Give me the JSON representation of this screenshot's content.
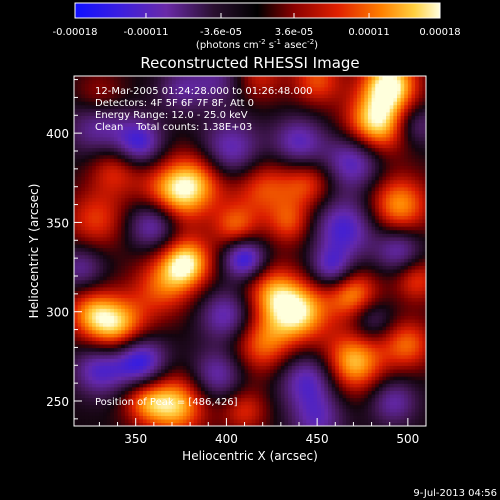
{
  "colorbar": {
    "tick_labels": [
      "-0.00018",
      "-0.00011",
      "-3.6e-05",
      "3.6e-05",
      "0.00011",
      "0.00018"
    ],
    "tick_values": [
      -0.00018,
      -0.00011,
      -3.6e-05,
      3.6e-05,
      0.00011,
      0.00018
    ],
    "units_prefix": "(photons cm",
    "units_exp1": "-2",
    "units_mid": " s",
    "units_exp2": "-1",
    "units_mid2": " asec",
    "units_exp3": "-2",
    "units_suffix": ")"
  },
  "title": "Reconstructed RHESSI Image",
  "info": {
    "time_range": "12-Mar-2005 01:24:28.000 to 01:26:48.000",
    "detectors": "Detectors: 4F 5F 6F 7F 8F, Att 0",
    "energy_range": "Energy Range: 12.0 - 25.0 keV",
    "clean": "Clean    Total counts: 1.38E+03",
    "peak": "Position of Peak = [486,426]"
  },
  "footer_timestamp": "9-Jul-2013 04:56",
  "chart_data": {
    "type": "heatmap",
    "title": "Reconstructed RHESSI Image",
    "xlabel": "Heliocentric X (arcsec)",
    "ylabel": "Heliocentric Y (arcsec)",
    "xlim": [
      316,
      510
    ],
    "ylim": [
      236,
      432
    ],
    "x_ticks": [
      350,
      400,
      450,
      500
    ],
    "x_tick_labels": [
      "350",
      "400",
      "450",
      "500"
    ],
    "y_ticks": [
      250,
      300,
      350,
      400
    ],
    "y_tick_labels": [
      "250",
      "300",
      "350",
      "400"
    ],
    "peak_position": [
      486,
      426
    ],
    "color_range": [
      -0.00018,
      0.00018
    ],
    "colormap": "red-temperature-diverging",
    "features": [
      {
        "x": 490,
        "y": 428,
        "v": 1.0,
        "r": 11
      },
      {
        "x": 482,
        "y": 405,
        "v": 0.95,
        "r": 12
      },
      {
        "x": 370,
        "y": 365,
        "v": 0.8,
        "r": 13
      },
      {
        "x": 385,
        "y": 375,
        "v": 0.6,
        "r": 12
      },
      {
        "x": 420,
        "y": 370,
        "v": 0.55,
        "r": 12
      },
      {
        "x": 445,
        "y": 372,
        "v": 0.5,
        "r": 10
      },
      {
        "x": 495,
        "y": 360,
        "v": 0.75,
        "r": 12
      },
      {
        "x": 405,
        "y": 348,
        "v": 0.55,
        "r": 9
      },
      {
        "x": 435,
        "y": 350,
        "v": 0.5,
        "r": 9
      },
      {
        "x": 378,
        "y": 328,
        "v": 0.9,
        "r": 10
      },
      {
        "x": 365,
        "y": 315,
        "v": 0.55,
        "r": 12
      },
      {
        "x": 425,
        "y": 312,
        "v": 0.6,
        "r": 11
      },
      {
        "x": 440,
        "y": 300,
        "v": 0.9,
        "r": 12
      },
      {
        "x": 470,
        "y": 310,
        "v": 0.7,
        "r": 10
      },
      {
        "x": 505,
        "y": 318,
        "v": 0.5,
        "r": 9
      },
      {
        "x": 340,
        "y": 292,
        "v": 0.85,
        "r": 12
      },
      {
        "x": 325,
        "y": 300,
        "v": 0.55,
        "r": 10
      },
      {
        "x": 420,
        "y": 282,
        "v": 0.6,
        "r": 12
      },
      {
        "x": 470,
        "y": 272,
        "v": 0.85,
        "r": 12
      },
      {
        "x": 500,
        "y": 282,
        "v": 0.6,
        "r": 10
      },
      {
        "x": 372,
        "y": 248,
        "v": 0.85,
        "r": 12
      },
      {
        "x": 355,
        "y": 250,
        "v": 0.5,
        "r": 9
      },
      {
        "x": 410,
        "y": 245,
        "v": 0.45,
        "r": 9
      },
      {
        "x": 328,
        "y": 352,
        "v": 0.5,
        "r": 12
      },
      {
        "x": 338,
        "y": 380,
        "v": 0.45,
        "r": 10
      },
      {
        "x": 450,
        "y": 430,
        "v": 0.55,
        "r": 10
      },
      {
        "x": 418,
        "y": 432,
        "v": 0.4,
        "r": 10
      },
      {
        "x": 330,
        "y": 420,
        "v": 0.4,
        "r": 10
      },
      {
        "x": 395,
        "y": 430,
        "v": -0.4,
        "r": 10
      },
      {
        "x": 470,
        "y": 385,
        "v": -0.7,
        "r": 11
      },
      {
        "x": 330,
        "y": 405,
        "v": -0.55,
        "r": 12
      },
      {
        "x": 352,
        "y": 395,
        "v": -0.7,
        "r": 9
      },
      {
        "x": 360,
        "y": 350,
        "v": -0.75,
        "r": 10
      },
      {
        "x": 402,
        "y": 390,
        "v": -0.65,
        "r": 12
      },
      {
        "x": 440,
        "y": 395,
        "v": -0.6,
        "r": 10
      },
      {
        "x": 410,
        "y": 330,
        "v": -0.85,
        "r": 8
      },
      {
        "x": 465,
        "y": 347,
        "v": -0.7,
        "r": 12
      },
      {
        "x": 495,
        "y": 335,
        "v": -0.55,
        "r": 9
      },
      {
        "x": 458,
        "y": 325,
        "v": -0.6,
        "r": 8
      },
      {
        "x": 400,
        "y": 298,
        "v": -0.6,
        "r": 10
      },
      {
        "x": 352,
        "y": 273,
        "v": -0.9,
        "r": 10
      },
      {
        "x": 330,
        "y": 268,
        "v": -0.65,
        "r": 10
      },
      {
        "x": 395,
        "y": 265,
        "v": -0.55,
        "r": 10
      },
      {
        "x": 445,
        "y": 262,
        "v": -0.65,
        "r": 11
      },
      {
        "x": 450,
        "y": 240,
        "v": -0.5,
        "r": 10
      },
      {
        "x": 492,
        "y": 250,
        "v": -0.5,
        "r": 9
      },
      {
        "x": 505,
        "y": 405,
        "v": -0.4,
        "r": 8
      },
      {
        "x": 375,
        "y": 425,
        "v": -0.4,
        "r": 9
      },
      {
        "x": 480,
        "y": 296,
        "v": -0.4,
        "r": 8
      },
      {
        "x": 320,
        "y": 325,
        "v": -0.45,
        "r": 9
      }
    ]
  }
}
